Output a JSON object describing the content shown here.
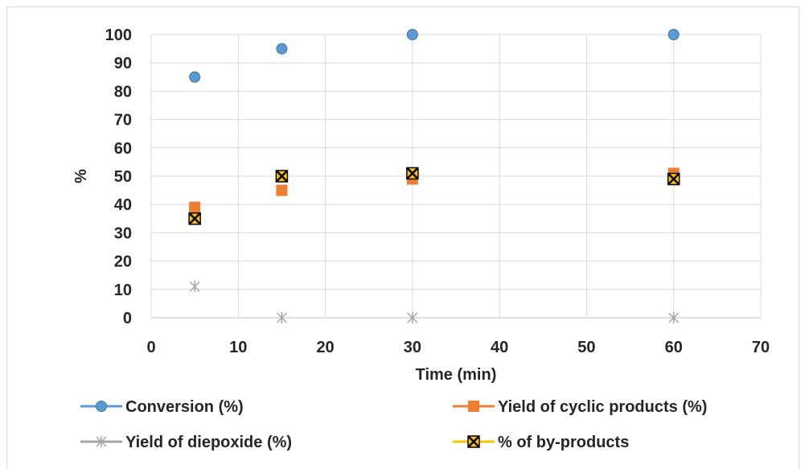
{
  "chart_data": {
    "type": "scatter",
    "title": "",
    "xlabel": "Time (min)",
    "ylabel": "%",
    "xlim": [
      0,
      70
    ],
    "ylim": [
      0,
      100
    ],
    "x_ticks": [
      0,
      10,
      20,
      30,
      40,
      50,
      60,
      70
    ],
    "y_ticks": [
      0,
      10,
      20,
      30,
      40,
      50,
      60,
      70,
      80,
      90,
      100
    ],
    "grid": true,
    "legend_position": "bottom",
    "series": [
      {
        "name": "Conversion (%)",
        "marker": "circle",
        "color": "#5b9bd5",
        "x": [
          5,
          15,
          30,
          60
        ],
        "y": [
          85,
          95,
          100,
          100
        ]
      },
      {
        "name": "Yield of cyclic products (%)",
        "marker": "square",
        "color": "#ed7d31",
        "x": [
          5,
          15,
          30,
          60
        ],
        "y": [
          39,
          45,
          49,
          51
        ]
      },
      {
        "name": "Yield of diepoxide (%)",
        "marker": "asterisk",
        "color": "#a5a5a5",
        "x": [
          5,
          15,
          30,
          60
        ],
        "y": [
          11,
          0,
          0,
          0
        ]
      },
      {
        "name": "% of by-products",
        "marker": "x-square",
        "color": "#ffc000",
        "x": [
          5,
          15,
          30,
          60
        ],
        "y": [
          35,
          50,
          51,
          49
        ]
      }
    ]
  }
}
